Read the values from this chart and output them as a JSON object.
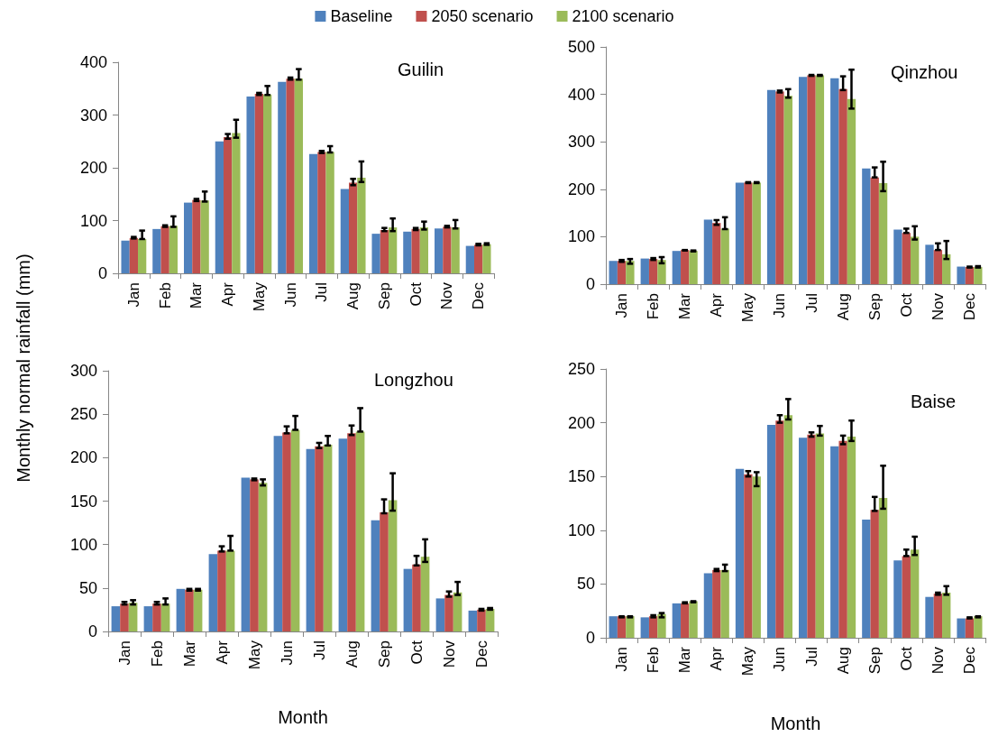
{
  "chart_data": [
    {
      "type": "bar",
      "title": "Guilin",
      "ylabel": "Monthly normal rainfall (mm)",
      "categories": [
        "Jan",
        "Feb",
        "Mar",
        "Apr",
        "May",
        "Jun",
        "Jul",
        "Aug",
        "Sep",
        "Oct",
        "Nov",
        "Dec"
      ],
      "ylim": [
        0,
        400
      ],
      "yticks": [
        0,
        100,
        200,
        300,
        400
      ],
      "grid": false,
      "legend": "top",
      "series": [
        {
          "name": "Baseline",
          "color": "#4f81bd",
          "values": [
            62,
            84,
            134,
            250,
            335,
            363,
            226,
            160,
            75,
            79,
            85,
            52
          ]
        },
        {
          "name": "2050 scenario",
          "color": "#c0504d",
          "values": [
            67,
            89,
            139,
            258,
            340,
            369,
            230,
            172,
            82,
            84,
            88,
            54
          ],
          "errors": [
            [
              66,
              69
            ],
            [
              88,
              91
            ],
            [
              137,
              141
            ],
            [
              255,
              264
            ],
            [
              338,
              342
            ],
            [
              367,
              371
            ],
            [
              228,
              232
            ],
            [
              167,
              179
            ],
            [
              80,
              86
            ],
            [
              82,
              86
            ],
            [
              87,
              90
            ],
            [
              53,
              56
            ]
          ]
        },
        {
          "name": "2100 scenario",
          "color": "#9bbb59",
          "values": [
            65,
            90,
            138,
            266,
            339,
            369,
            230,
            181,
            87,
            87,
            87,
            55
          ],
          "errors": [
            [
              65,
              81
            ],
            [
              88,
              108
            ],
            [
              136,
              155
            ],
            [
              257,
              291
            ],
            [
              338,
              355
            ],
            [
              367,
              387
            ],
            [
              229,
              241
            ],
            [
              173,
              212
            ],
            [
              80,
              104
            ],
            [
              83,
              98
            ],
            [
              85,
              101
            ],
            [
              54,
              57
            ]
          ]
        }
      ]
    },
    {
      "type": "bar",
      "title": "Qinzhou",
      "categories": [
        "Jan",
        "Feb",
        "Mar",
        "Apr",
        "May",
        "Jun",
        "Jul",
        "Aug",
        "Sep",
        "Oct",
        "Nov",
        "Dec"
      ],
      "ylim": [
        0,
        500
      ],
      "yticks": [
        0,
        100,
        200,
        300,
        400,
        500
      ],
      "grid": false,
      "series": [
        {
          "color": "#4f81bd",
          "values": [
            49,
            54,
            70,
            136,
            214,
            409,
            437,
            434,
            244,
            115,
            83,
            37
          ]
        },
        {
          "color": "#c0504d",
          "values": [
            49,
            53,
            72,
            129,
            214,
            406,
            440,
            411,
            225,
            108,
            72,
            36
          ],
          "errors": [
            [
              47,
              51
            ],
            [
              51,
              55
            ],
            [
              71,
              72
            ],
            [
              125,
              135
            ],
            [
              213,
              215
            ],
            [
              404,
              408
            ],
            [
              439,
              441
            ],
            [
              409,
              438
            ],
            [
              225,
              246
            ],
            [
              108,
              117
            ],
            [
              72,
              86
            ],
            [
              35,
              37
            ]
          ]
        },
        {
          "color": "#9bbb59",
          "values": [
            49,
            51,
            70,
            117,
            214,
            397,
            440,
            390,
            213,
            100,
            63,
            36
          ],
          "errors": [
            [
              43,
              53
            ],
            [
              44,
              57
            ],
            [
              69,
              71
            ],
            [
              116,
              141
            ],
            [
              213,
              215
            ],
            [
              393,
              411
            ],
            [
              439,
              441
            ],
            [
              370,
              452
            ],
            [
              196,
              258
            ],
            [
              94,
              122
            ],
            [
              53,
              91
            ],
            [
              35,
              38
            ]
          ]
        }
      ]
    },
    {
      "type": "bar",
      "title": "Longzhou",
      "xlabel": "Month",
      "categories": [
        "Jan",
        "Feb",
        "Mar",
        "Apr",
        "May",
        "Jun",
        "Jul",
        "Aug",
        "Sep",
        "Oct",
        "Nov",
        "Dec"
      ],
      "ylim": [
        0,
        300
      ],
      "yticks": [
        0,
        50,
        100,
        150,
        200,
        250,
        300
      ],
      "grid": false,
      "series": [
        {
          "color": "#4f81bd",
          "values": [
            29,
            29,
            49,
            89,
            177,
            225,
            210,
            222,
            128,
            72,
            38,
            24
          ]
        },
        {
          "color": "#c0504d",
          "values": [
            32,
            32,
            48,
            93,
            175,
            229,
            213,
            228,
            137,
            77,
            42,
            25
          ],
          "errors": [
            [
              31,
              34
            ],
            [
              31,
              34
            ],
            [
              47,
              49
            ],
            [
              92,
              98
            ],
            [
              174,
              176
            ],
            [
              228,
              236
            ],
            [
              211,
              217
            ],
            [
              226,
              237
            ],
            [
              136,
              152
            ],
            [
              76,
              87
            ],
            [
              40,
              46
            ],
            [
              24,
              26
            ]
          ]
        },
        {
          "color": "#9bbb59",
          "values": [
            33,
            32,
            48,
            93,
            171,
            232,
            215,
            230,
            151,
            86,
            45,
            26
          ],
          "errors": [
            [
              31,
              36
            ],
            [
              31,
              38
            ],
            [
              47,
              49
            ],
            [
              93,
              110
            ],
            [
              168,
              175
            ],
            [
              232,
              248
            ],
            [
              214,
              225
            ],
            [
              230,
              257
            ],
            [
              139,
              182
            ],
            [
              80,
              106
            ],
            [
              42,
              57
            ],
            [
              25,
              27
            ]
          ]
        }
      ]
    },
    {
      "type": "bar",
      "title": "Baise",
      "xlabel": "Month",
      "categories": [
        "Jan",
        "Feb",
        "Mar",
        "Apr",
        "May",
        "Jun",
        "Jul",
        "Aug",
        "Sep",
        "Oct",
        "Nov",
        "Dec"
      ],
      "ylim": [
        0,
        250
      ],
      "yticks": [
        0,
        50,
        100,
        150,
        200,
        250
      ],
      "grid": false,
      "series": [
        {
          "color": "#4f81bd",
          "values": [
            20,
            19,
            32,
            60,
            157,
            198,
            186,
            178,
            110,
            72,
            38,
            18
          ]
        },
        {
          "color": "#c0504d",
          "values": [
            20,
            20,
            32,
            63,
            152,
            202,
            189,
            183,
            119,
            76,
            41,
            18
          ],
          "errors": [
            [
              19,
              20
            ],
            [
              19,
              21
            ],
            [
              32,
              33
            ],
            [
              62,
              64
            ],
            [
              150,
              155
            ],
            [
              200,
              207
            ],
            [
              187,
              191
            ],
            [
              180,
              188
            ],
            [
              118,
              131
            ],
            [
              76,
              82
            ],
            [
              40,
              42
            ],
            [
              18,
              19
            ]
          ]
        },
        {
          "color": "#9bbb59",
          "values": [
            20,
            22,
            34,
            63,
            150,
            207,
            190,
            187,
            130,
            82,
            42,
            20
          ],
          "errors": [
            [
              19,
              20
            ],
            [
              19,
              23
            ],
            [
              33,
              34
            ],
            [
              62,
              68
            ],
            [
              141,
              154
            ],
            [
              203,
              222
            ],
            [
              188,
              197
            ],
            [
              183,
              202
            ],
            [
              120,
              160
            ],
            [
              77,
              94
            ],
            [
              40,
              48
            ],
            [
              19,
              20
            ]
          ]
        }
      ]
    }
  ]
}
